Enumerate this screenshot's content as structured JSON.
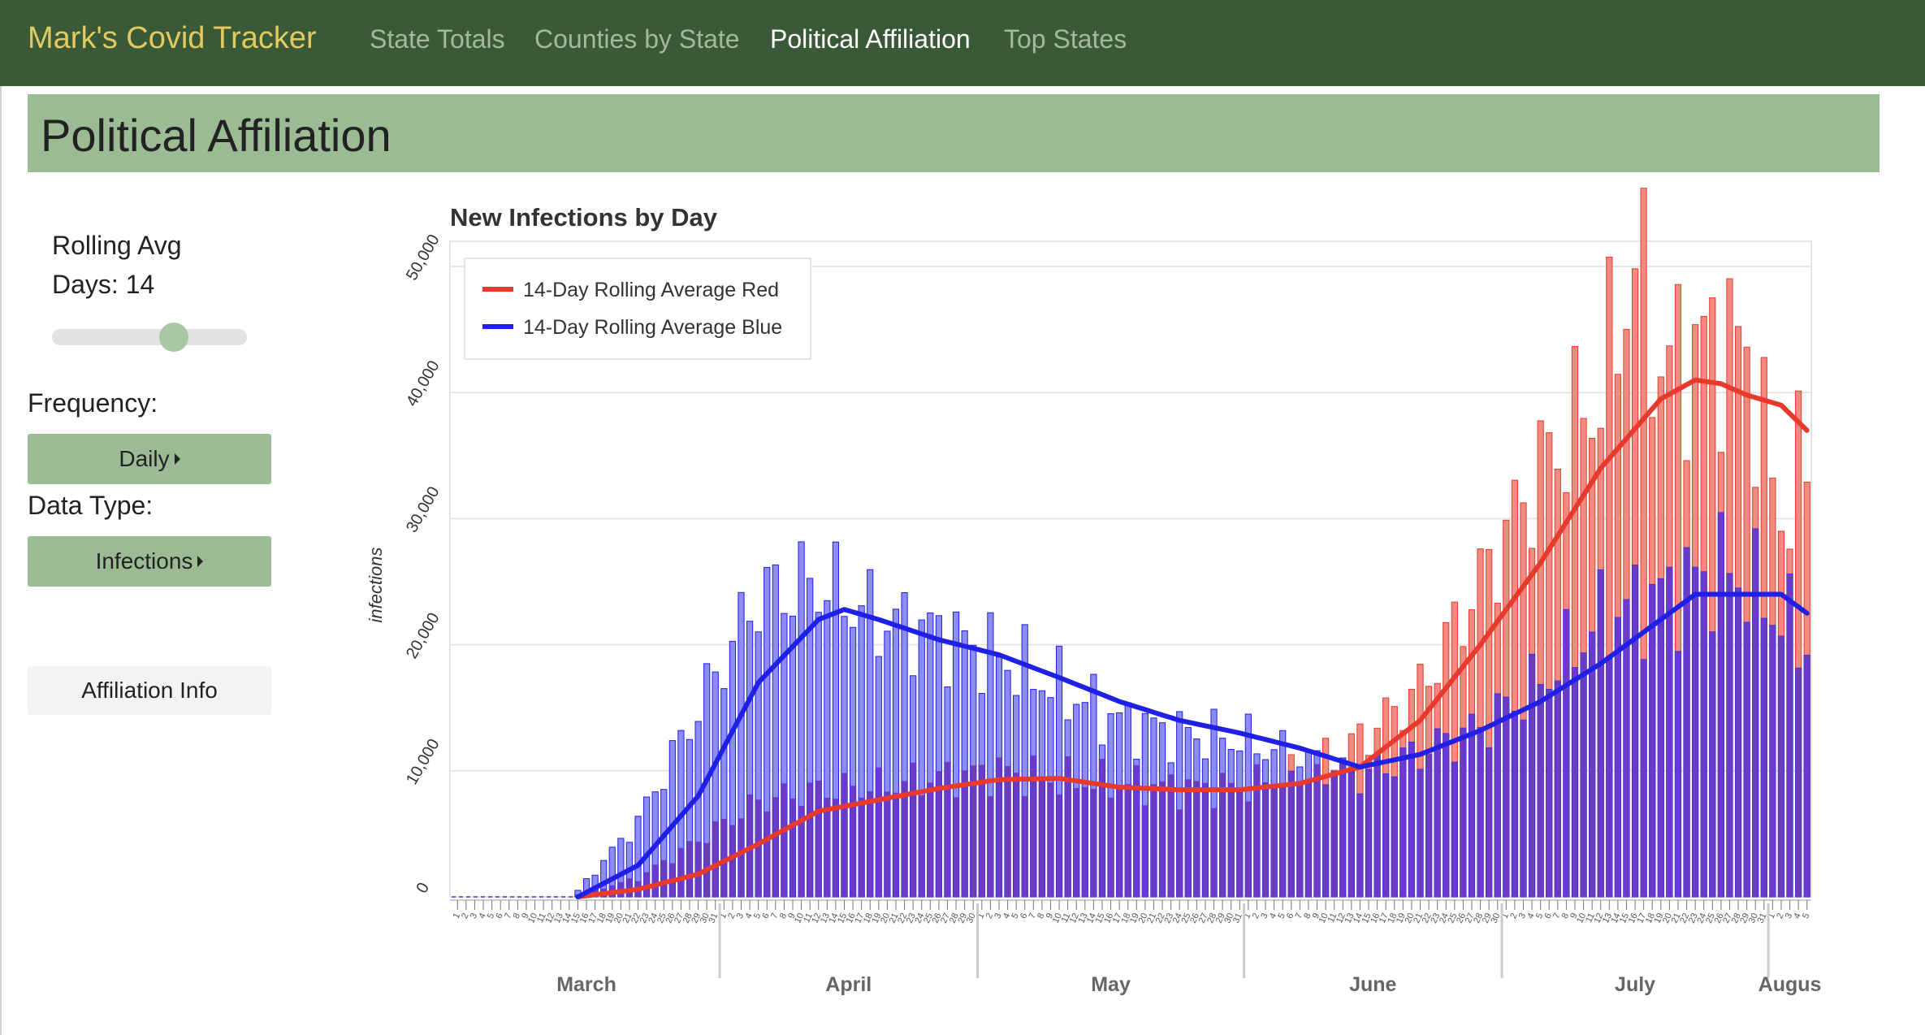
{
  "nav": {
    "brand": "Mark's Covid Tracker",
    "links": [
      "State Totals",
      "Counties by State",
      "Political Affiliation",
      "Top States"
    ]
  },
  "header": {
    "title": "Political Affiliation"
  },
  "sidebar": {
    "rolling_label": "Rolling Avg",
    "days_label": "Days: 14",
    "rolling_days": 14,
    "frequency_label": "Frequency:",
    "frequency_value": "Daily",
    "data_type_label": "Data Type:",
    "data_type_value": "Infections",
    "info_button": "Affiliation Info"
  },
  "colors": {
    "nav_bg": "#3a5a37",
    "brand": "#e2c962",
    "accent": "#9bbb94",
    "red": "#e8392d",
    "blue": "#1f1fe6",
    "red_bar": "#f08b82",
    "blue_bar": "#8c8cf2",
    "overlap_bar": "#6a3bc8"
  },
  "chart_data": {
    "type": "bar",
    "title": "New Infections by Day",
    "ylabel": "infections",
    "ylim": [
      0,
      52000
    ],
    "yticks": [
      0,
      10000,
      20000,
      30000,
      40000,
      50000
    ],
    "ytick_labels": [
      "0",
      "10,000",
      "20,000",
      "30,000",
      "40,000",
      "50,000"
    ],
    "months": [
      {
        "name": "March",
        "start_day": 1,
        "days": 31
      },
      {
        "name": "April",
        "start_day": 1,
        "days": 30
      },
      {
        "name": "May",
        "start_day": 1,
        "days": 31
      },
      {
        "name": "June",
        "start_day": 1,
        "days": 30
      },
      {
        "name": "July",
        "start_day": 1,
        "days": 31
      },
      {
        "name": "Augus",
        "start_day": 1,
        "days": 5
      }
    ],
    "legend": [
      "14-Day Rolling Average Red",
      "14-Day Rolling Average Blue"
    ],
    "legend_position": "top-left",
    "grid": true,
    "series": [
      {
        "name": "14-Day Rolling Average Red",
        "type": "line",
        "x": [
          "Mar 15",
          "Mar 22",
          "Mar 29",
          "Apr 5",
          "Apr 12",
          "Apr 19",
          "Apr 26",
          "May 3",
          "May 10",
          "May 17",
          "May 24",
          "May 31",
          "Jun 7",
          "Jun 14",
          "Jun 21",
          "Jun 28",
          "Jul 5",
          "Jul 12",
          "Jul 19",
          "Jul 23",
          "Jul 26",
          "Jul 29",
          "Aug 2",
          "Aug 5"
        ],
        "values": [
          0,
          600,
          1800,
          4200,
          6800,
          7700,
          8600,
          9300,
          9400,
          8700,
          8500,
          8500,
          9000,
          10300,
          14000,
          20000,
          26500,
          34000,
          39500,
          41000,
          40700,
          39800,
          39000,
          37000
        ]
      },
      {
        "name": "14-Day Rolling Average Blue",
        "type": "line",
        "x": [
          "Mar 15",
          "Mar 22",
          "Mar 29",
          "Apr 5",
          "Apr 12",
          "Apr 15",
          "Apr 19",
          "Apr 26",
          "May 3",
          "May 10",
          "May 17",
          "May 24",
          "May 31",
          "Jun 7",
          "Jun 14",
          "Jun 21",
          "Jun 28",
          "Jul 5",
          "Jul 12",
          "Jul 19",
          "Jul 23",
          "Jul 26",
          "Jul 29",
          "Aug 2",
          "Aug 5"
        ],
        "values": [
          0,
          2500,
          8000,
          17000,
          22000,
          22800,
          22000,
          20400,
          19200,
          17400,
          15500,
          14000,
          13000,
          11800,
          10300,
          11300,
          13200,
          15500,
          18500,
          22000,
          24000,
          24000,
          24000,
          24000,
          22500
        ]
      },
      {
        "name": "Red daily",
        "type": "bar",
        "x": [
          "Mar 15",
          "Mar 22",
          "Mar 29",
          "Apr 5",
          "Apr 12",
          "Apr 19",
          "Apr 26",
          "May 3",
          "May 10",
          "May 17",
          "May 24",
          "May 31",
          "Jun 7",
          "Jun 14",
          "Jun 21",
          "Jun 28",
          "Jul 5",
          "Jul 12",
          "Jul 16",
          "Jul 19",
          "Jul 26",
          "Jul 29",
          "Aug 2",
          "Aug 5"
        ],
        "values": [
          200,
          1500,
          4500,
          7600,
          8500,
          8800,
          9500,
          10000,
          9300,
          9000,
          8700,
          8700,
          9700,
          12500,
          16500,
          25000,
          34000,
          40000,
          50500,
          42000,
          44500,
          43000,
          30000,
          35000
        ]
      },
      {
        "name": "Blue daily",
        "type": "bar",
        "x": [
          "Mar 15",
          "Mar 22",
          "Mar 29",
          "Apr 5",
          "Apr 12",
          "Apr 19",
          "Apr 26",
          "May 3",
          "May 10",
          "May 17",
          "May 24",
          "May 31",
          "Jun 7",
          "Jun 14",
          "Jun 21",
          "Jun 28",
          "Jul 5",
          "Jul 12",
          "Jul 19",
          "Jul 26",
          "Jul 29",
          "Aug 2",
          "Aug 5"
        ],
        "values": [
          500,
          6000,
          15000,
          24000,
          25000,
          22000,
          21000,
          19000,
          16500,
          14000,
          13000,
          12500,
          11000,
          9500,
          11500,
          13500,
          17000,
          22000,
          24000,
          26000,
          25000,
          22000,
          20000
        ]
      }
    ]
  }
}
